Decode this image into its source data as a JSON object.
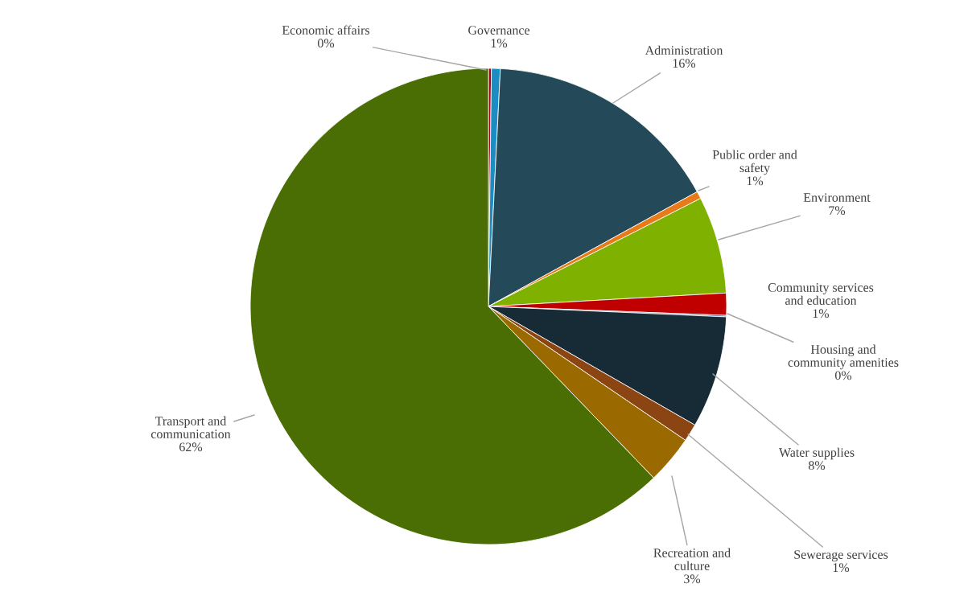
{
  "chart_data": {
    "type": "pie",
    "categories": [
      "Economic affairs",
      "Governance",
      "Administration",
      "Public order and\nsafety",
      "Environment",
      "Community services\nand education",
      "Housing and\ncommunity amenities",
      "Water supplies",
      "Sewerage services",
      "Recreation and\nculture",
      "Transport and\ncommunication"
    ],
    "values": [
      0.2,
      0.6,
      16.2,
      0.5,
      6.6,
      1.5,
      0.1,
      7.6,
      1.2,
      3.3,
      62.2
    ],
    "value_labels": [
      "0%",
      "1%",
      "16%",
      "1%",
      "7%",
      "1%",
      "0%",
      "8%",
      "1%",
      "3%",
      "62%"
    ],
    "colors": [
      "#a50021",
      "#1b8dc2",
      "#244a5a",
      "#e97a1a",
      "#7fb200",
      "#c00000",
      "#4b6b9f",
      "#172b37",
      "#8b4513",
      "#9a6a00",
      "#4a6e03"
    ],
    "legend": false
  }
}
